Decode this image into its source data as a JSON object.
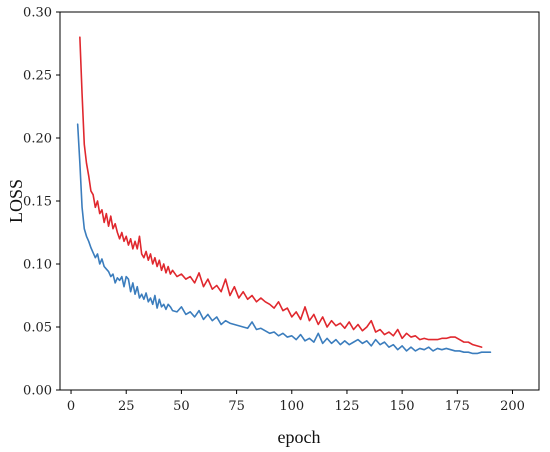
{
  "chart_data": {
    "type": "line",
    "xlabel": "epoch",
    "ylabel": "LOSS",
    "xlim": [
      -5,
      212
    ],
    "ylim": [
      0.0,
      0.3
    ],
    "x_ticks": [
      0,
      25,
      50,
      75,
      100,
      125,
      150,
      175,
      200
    ],
    "y_ticks": [
      0.0,
      0.05,
      0.1,
      0.15,
      0.2,
      0.25,
      0.3
    ],
    "y_tick_labels": [
      "0.00",
      "0.05",
      "0.10",
      "0.15",
      "0.20",
      "0.25",
      "0.30"
    ],
    "grid": false,
    "legend": "none",
    "series": [
      {
        "color": "#e0282e",
        "x": [
          4,
          5,
          6,
          7,
          8,
          9,
          10,
          11,
          12,
          13,
          14,
          15,
          16,
          17,
          18,
          19,
          20,
          21,
          22,
          23,
          24,
          25,
          26,
          27,
          28,
          29,
          30,
          31,
          32,
          33,
          34,
          35,
          36,
          37,
          38,
          39,
          40,
          41,
          42,
          43,
          44,
          45,
          46,
          48,
          50,
          52,
          54,
          56,
          58,
          60,
          62,
          64,
          66,
          68,
          70,
          72,
          74,
          76,
          78,
          80,
          82,
          84,
          86,
          88,
          90,
          92,
          94,
          96,
          98,
          100,
          102,
          104,
          106,
          108,
          110,
          112,
          114,
          116,
          118,
          120,
          122,
          124,
          126,
          128,
          130,
          132,
          134,
          136,
          138,
          140,
          142,
          144,
          146,
          148,
          150,
          152,
          154,
          156,
          158,
          160,
          162,
          164,
          166,
          168,
          170,
          172,
          174,
          176,
          178,
          180,
          182,
          184,
          186
        ],
        "y": [
          0.28,
          0.235,
          0.195,
          0.18,
          0.17,
          0.158,
          0.155,
          0.145,
          0.15,
          0.14,
          0.143,
          0.133,
          0.14,
          0.13,
          0.138,
          0.128,
          0.132,
          0.125,
          0.12,
          0.125,
          0.118,
          0.122,
          0.115,
          0.12,
          0.112,
          0.118,
          0.112,
          0.122,
          0.108,
          0.105,
          0.11,
          0.103,
          0.108,
          0.1,
          0.105,
          0.098,
          0.103,
          0.095,
          0.1,
          0.093,
          0.098,
          0.092,
          0.095,
          0.09,
          0.092,
          0.088,
          0.09,
          0.085,
          0.093,
          0.082,
          0.088,
          0.08,
          0.083,
          0.078,
          0.088,
          0.075,
          0.082,
          0.073,
          0.078,
          0.072,
          0.075,
          0.07,
          0.073,
          0.07,
          0.068,
          0.065,
          0.07,
          0.063,
          0.065,
          0.058,
          0.062,
          0.056,
          0.066,
          0.055,
          0.06,
          0.052,
          0.058,
          0.05,
          0.055,
          0.051,
          0.053,
          0.049,
          0.054,
          0.048,
          0.052,
          0.047,
          0.05,
          0.055,
          0.046,
          0.048,
          0.044,
          0.046,
          0.043,
          0.048,
          0.041,
          0.045,
          0.042,
          0.043,
          0.04,
          0.041,
          0.04,
          0.04,
          0.04,
          0.041,
          0.041,
          0.042,
          0.042,
          0.04,
          0.038,
          0.038,
          0.036,
          0.035,
          0.034
        ]
      },
      {
        "color": "#3b7dbd",
        "x": [
          3,
          4,
          5,
          6,
          7,
          8,
          9,
          10,
          11,
          12,
          13,
          14,
          15,
          16,
          17,
          18,
          19,
          20,
          21,
          22,
          23,
          24,
          25,
          26,
          27,
          28,
          29,
          30,
          31,
          32,
          33,
          34,
          35,
          36,
          37,
          38,
          39,
          40,
          41,
          42,
          43,
          44,
          45,
          46,
          48,
          50,
          52,
          54,
          56,
          58,
          60,
          62,
          64,
          66,
          68,
          70,
          72,
          74,
          76,
          78,
          80,
          82,
          84,
          86,
          88,
          90,
          92,
          94,
          96,
          98,
          100,
          102,
          104,
          106,
          108,
          110,
          112,
          114,
          116,
          118,
          120,
          122,
          124,
          126,
          128,
          130,
          132,
          134,
          136,
          138,
          140,
          142,
          144,
          146,
          148,
          150,
          152,
          154,
          156,
          158,
          160,
          162,
          164,
          166,
          168,
          170,
          172,
          174,
          176,
          178,
          180,
          182,
          184,
          186,
          188,
          190
        ],
        "y": [
          0.211,
          0.18,
          0.145,
          0.128,
          0.122,
          0.118,
          0.113,
          0.109,
          0.105,
          0.108,
          0.1,
          0.104,
          0.098,
          0.096,
          0.094,
          0.09,
          0.092,
          0.085,
          0.089,
          0.087,
          0.09,
          0.082,
          0.09,
          0.088,
          0.078,
          0.085,
          0.076,
          0.082,
          0.073,
          0.076,
          0.072,
          0.077,
          0.07,
          0.073,
          0.068,
          0.075,
          0.065,
          0.072,
          0.066,
          0.068,
          0.064,
          0.068,
          0.066,
          0.063,
          0.062,
          0.066,
          0.06,
          0.062,
          0.058,
          0.063,
          0.056,
          0.06,
          0.055,
          0.058,
          0.052,
          0.055,
          0.053,
          0.052,
          0.051,
          0.05,
          0.049,
          0.054,
          0.048,
          0.049,
          0.047,
          0.045,
          0.046,
          0.043,
          0.045,
          0.042,
          0.043,
          0.04,
          0.044,
          0.039,
          0.041,
          0.038,
          0.045,
          0.037,
          0.041,
          0.037,
          0.04,
          0.036,
          0.039,
          0.036,
          0.038,
          0.04,
          0.037,
          0.039,
          0.035,
          0.04,
          0.036,
          0.038,
          0.034,
          0.036,
          0.032,
          0.035,
          0.031,
          0.034,
          0.031,
          0.033,
          0.032,
          0.034,
          0.031,
          0.033,
          0.032,
          0.033,
          0.032,
          0.031,
          0.031,
          0.03,
          0.03,
          0.029,
          0.029,
          0.03,
          0.03,
          0.03
        ]
      }
    ]
  }
}
